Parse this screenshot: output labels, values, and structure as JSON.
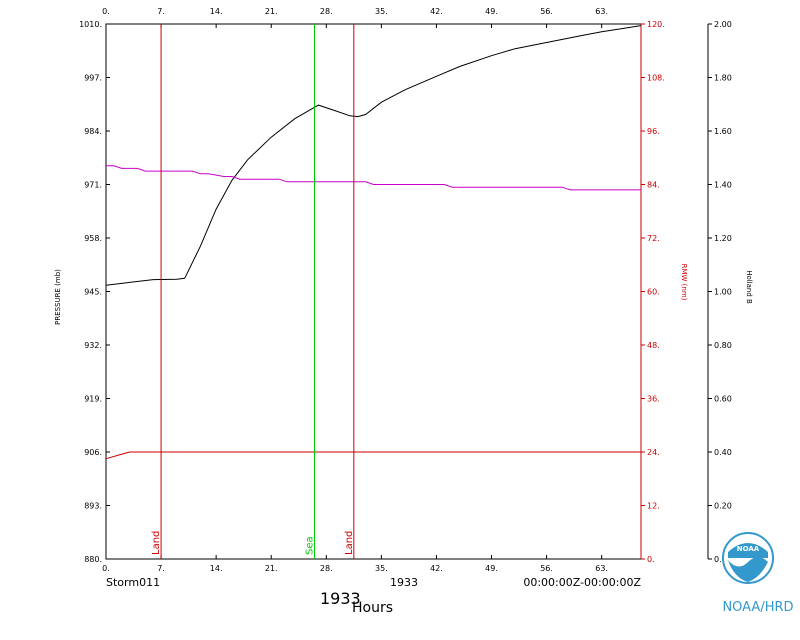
{
  "chart_data": {
    "type": "line",
    "x_axis": {
      "label": "Hours",
      "ticks": [
        0,
        7,
        14,
        21,
        28,
        35,
        42,
        49,
        56,
        63
      ],
      "bottom_tick_labels": [
        "0.",
        "7.",
        "14.",
        "21.",
        "28.",
        "35.",
        "42.",
        "49.",
        "56.",
        "63."
      ],
      "top_tick_labels": [
        "0.",
        "7.",
        "14.",
        "21.",
        "28.",
        "35.",
        "42.",
        "49.",
        "56.",
        "63."
      ],
      "range": [
        0,
        68
      ]
    },
    "y_left": {
      "label": "PRESSURE (mb)",
      "range": [
        880,
        1010
      ],
      "tick_values": [
        880,
        893,
        906,
        919,
        932,
        945,
        958,
        971,
        984,
        997,
        1010
      ],
      "tick_labels": [
        "880.",
        "893.",
        "906.",
        "919.",
        "932.",
        "945.",
        "958.",
        "971.",
        "984.",
        "997.",
        "1010."
      ]
    },
    "y_right1": {
      "label": "RMW (nm)",
      "range": [
        0,
        120
      ],
      "tick_values": [
        0,
        12,
        24,
        36,
        48,
        60,
        72,
        84,
        96,
        108,
        120
      ],
      "tick_labels": [
        "0.",
        "12.",
        "24.",
        "36.",
        "48.",
        "60.",
        "72.",
        "84.",
        "96.",
        "108.",
        "120."
      ]
    },
    "y_right2": {
      "label": "Holland B",
      "range": [
        0,
        2
      ],
      "tick_values": [
        0,
        0.2,
        0.4,
        0.6,
        0.8,
        1.0,
        1.2,
        1.4,
        1.6,
        1.8,
        2.0
      ],
      "tick_labels": [
        "0.00",
        "0.20",
        "0.40",
        "0.60",
        "0.80",
        "1.00",
        "1.20",
        "1.40",
        "1.60",
        "1.80",
        "2.00"
      ]
    },
    "series": [
      {
        "axis": "pressure",
        "color": "#000000",
        "x": [
          0,
          3,
          6,
          9,
          10,
          12,
          14,
          16,
          18,
          21,
          24,
          27,
          29,
          31,
          32,
          33,
          35,
          38,
          42,
          45,
          49,
          52,
          56,
          60,
          63,
          66,
          68
        ],
        "y": [
          946.5,
          947.2,
          947.9,
          948,
          948.2,
          956,
          965,
          972,
          977,
          982.5,
          987,
          990.3,
          989,
          987.7,
          987.5,
          988,
          991,
          994,
          997.3,
          999.7,
          1002.3,
          1004,
          1005.5,
          1007,
          1008.1,
          1009,
          1009.6
        ]
      },
      {
        "axis": "holland_b",
        "color": "#cc00cc",
        "x": [
          0,
          1,
          2,
          4,
          5,
          7,
          8,
          9,
          11,
          12,
          13,
          15,
          16,
          17,
          22,
          23,
          33,
          34,
          43,
          44,
          58,
          59,
          68
        ],
        "y": [
          1.47,
          1.47,
          1.46,
          1.46,
          1.45,
          1.45,
          1.45,
          1.45,
          1.45,
          1.44,
          1.44,
          1.43,
          1.43,
          1.42,
          1.42,
          1.41,
          1.41,
          1.4,
          1.4,
          1.39,
          1.39,
          1.38,
          1.38
        ]
      },
      {
        "axis": "rmw",
        "color": "#cc0000",
        "x": [
          0,
          3,
          68
        ],
        "y": [
          22.5,
          24,
          24
        ]
      }
    ],
    "markers": [
      {
        "x": 7,
        "label": "Land",
        "color": "#cc0000"
      },
      {
        "x": 26.5,
        "label": "Sea",
        "color": "#00cc00"
      },
      {
        "x": 31.5,
        "label": "Land",
        "color": "#cc0000"
      }
    ],
    "footer": {
      "storm": "Storm011",
      "year_small": "1933",
      "time_range": "00:00:00Z-00:00:00Z",
      "year_large": "1933"
    },
    "logo_text": "NOAA/HRD",
    "logo_seal_text": "NOAA",
    "colors": {
      "axis": "#000000",
      "rmw": "#cc0000",
      "land": "#cc0000",
      "sea": "#00cc00",
      "holland": "#cc00cc",
      "logo": "#3399cc"
    }
  }
}
